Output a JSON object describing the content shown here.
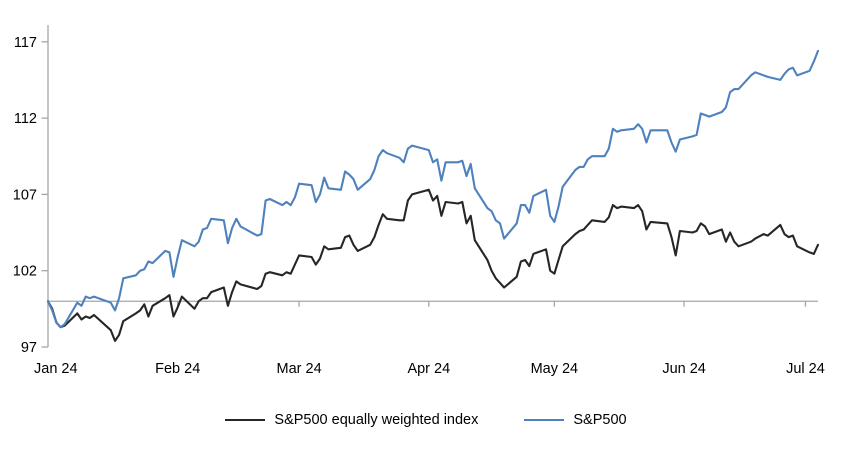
{
  "chart_data": {
    "type": "line",
    "title": "",
    "x_axis": {
      "labels": [
        "Jan 24",
        "Feb 24",
        "Mar 24",
        "Apr 24",
        "May 24",
        "Jun 24",
        "Jul 24"
      ],
      "label_positions_days": [
        0,
        31,
        60,
        91,
        121,
        152,
        181
      ],
      "range_days": [
        0,
        184
      ],
      "unit": "calendar days since Jan 1 2024"
    },
    "y_axis": {
      "tick_labels": [
        "97",
        "102",
        "107",
        "112",
        "117"
      ],
      "tick_values": [
        97,
        102,
        107,
        112,
        117
      ],
      "range": [
        97,
        118.1
      ],
      "baseline_value": 100
    },
    "grid": false,
    "legend_position": "bottom-center",
    "colors": {
      "sp500_line": "#4f81bd",
      "equal_weight_line": "#262626",
      "axis_gray": "#a6a6a6",
      "text": "#000000"
    },
    "series": [
      {
        "name": "S&P500 equally weighted index",
        "color": "#262626",
        "points": [
          [
            0,
            100
          ],
          [
            1,
            99.5
          ],
          [
            2,
            98.6
          ],
          [
            3,
            98.3
          ],
          [
            4,
            98.4
          ],
          [
            7,
            99.2
          ],
          [
            8,
            98.8
          ],
          [
            9,
            99.0
          ],
          [
            10,
            98.9
          ],
          [
            11,
            99.1
          ],
          [
            15,
            98.1
          ],
          [
            16,
            97.4
          ],
          [
            17,
            97.8
          ],
          [
            18,
            98.7
          ],
          [
            21,
            99.2
          ],
          [
            22,
            99.4
          ],
          [
            23,
            99.8
          ],
          [
            24,
            99.0
          ],
          [
            25,
            99.7
          ],
          [
            28,
            100.2
          ],
          [
            29,
            100.4
          ],
          [
            30,
            99.0
          ],
          [
            31,
            99.6
          ],
          [
            32,
            100.3
          ],
          [
            35,
            99.5
          ],
          [
            36,
            100.0
          ],
          [
            37,
            100.2
          ],
          [
            38,
            100.2
          ],
          [
            39,
            100.6
          ],
          [
            42,
            100.9
          ],
          [
            43,
            99.7
          ],
          [
            44,
            100.6
          ],
          [
            45,
            101.3
          ],
          [
            46,
            101.1
          ],
          [
            50,
            100.8
          ],
          [
            51,
            101.0
          ],
          [
            52,
            101.8
          ],
          [
            53,
            101.9
          ],
          [
            56,
            101.7
          ],
          [
            57,
            101.9
          ],
          [
            58,
            101.8
          ],
          [
            59,
            102.4
          ],
          [
            60,
            103.0
          ],
          [
            63,
            102.9
          ],
          [
            64,
            102.4
          ],
          [
            65,
            102.8
          ],
          [
            66,
            103.6
          ],
          [
            67,
            103.4
          ],
          [
            70,
            103.5
          ],
          [
            71,
            104.2
          ],
          [
            72,
            104.3
          ],
          [
            73,
            103.7
          ],
          [
            74,
            103.3
          ],
          [
            77,
            103.7
          ],
          [
            78,
            104.2
          ],
          [
            79,
            105.0
          ],
          [
            80,
            105.7
          ],
          [
            81,
            105.4
          ],
          [
            84,
            105.3
          ],
          [
            85,
            105.3
          ],
          [
            86,
            106.6
          ],
          [
            87,
            107.0
          ],
          [
            91,
            107.3
          ],
          [
            92,
            106.6
          ],
          [
            93,
            106.9
          ],
          [
            94,
            105.6
          ],
          [
            95,
            106.5
          ],
          [
            98,
            106.4
          ],
          [
            99,
            106.5
          ],
          [
            100,
            105.1
          ],
          [
            101,
            105.6
          ],
          [
            102,
            104.0
          ],
          [
            105,
            102.7
          ],
          [
            106,
            102.0
          ],
          [
            107,
            101.5
          ],
          [
            108,
            101.2
          ],
          [
            109,
            100.9
          ],
          [
            112,
            101.6
          ],
          [
            113,
            102.6
          ],
          [
            114,
            102.7
          ],
          [
            115,
            102.3
          ],
          [
            116,
            103.1
          ],
          [
            119,
            103.4
          ],
          [
            120,
            102.0
          ],
          [
            121,
            101.8
          ],
          [
            122,
            102.7
          ],
          [
            123,
            103.6
          ],
          [
            126,
            104.4
          ],
          [
            127,
            104.6
          ],
          [
            128,
            104.7
          ],
          [
            129,
            105.0
          ],
          [
            130,
            105.3
          ],
          [
            133,
            105.2
          ],
          [
            134,
            105.5
          ],
          [
            135,
            106.3
          ],
          [
            136,
            106.1
          ],
          [
            137,
            106.2
          ],
          [
            140,
            106.1
          ],
          [
            141,
            106.3
          ],
          [
            142,
            105.9
          ],
          [
            143,
            104.7
          ],
          [
            144,
            105.2
          ],
          [
            148,
            105.1
          ],
          [
            149,
            104.2
          ],
          [
            150,
            103.0
          ],
          [
            151,
            104.6
          ],
          [
            154,
            104.5
          ],
          [
            155,
            104.6
          ],
          [
            156,
            105.1
          ],
          [
            157,
            104.9
          ],
          [
            158,
            104.4
          ],
          [
            161,
            104.7
          ],
          [
            162,
            103.9
          ],
          [
            163,
            104.5
          ],
          [
            164,
            103.9
          ],
          [
            165,
            103.6
          ],
          [
            168,
            103.9
          ],
          [
            169,
            104.1
          ],
          [
            171,
            104.4
          ],
          [
            172,
            104.3
          ],
          [
            175,
            105.0
          ],
          [
            176,
            104.4
          ],
          [
            177,
            104.2
          ],
          [
            178,
            104.3
          ],
          [
            179,
            103.6
          ],
          [
            182,
            103.2
          ],
          [
            183,
            103.1
          ],
          [
            184,
            103.7
          ]
        ]
      },
      {
        "name": "S&P500",
        "color": "#4f81bd",
        "points": [
          [
            0,
            100
          ],
          [
            1,
            99.4
          ],
          [
            2,
            98.6
          ],
          [
            3,
            98.3
          ],
          [
            4,
            98.5
          ],
          [
            7,
            99.9
          ],
          [
            8,
            99.7
          ],
          [
            9,
            100.3
          ],
          [
            10,
            100.2
          ],
          [
            11,
            100.3
          ],
          [
            15,
            99.9
          ],
          [
            16,
            99.4
          ],
          [
            17,
            100.2
          ],
          [
            18,
            101.5
          ],
          [
            21,
            101.7
          ],
          [
            22,
            102.0
          ],
          [
            23,
            102.1
          ],
          [
            24,
            102.6
          ],
          [
            25,
            102.5
          ],
          [
            28,
            103.3
          ],
          [
            29,
            103.2
          ],
          [
            30,
            101.6
          ],
          [
            31,
            102.9
          ],
          [
            32,
            104.0
          ],
          [
            35,
            103.6
          ],
          [
            36,
            103.9
          ],
          [
            37,
            104.7
          ],
          [
            38,
            104.8
          ],
          [
            39,
            105.4
          ],
          [
            42,
            105.3
          ],
          [
            43,
            103.8
          ],
          [
            44,
            104.8
          ],
          [
            45,
            105.4
          ],
          [
            46,
            104.9
          ],
          [
            50,
            104.3
          ],
          [
            51,
            104.4
          ],
          [
            52,
            106.6
          ],
          [
            53,
            106.7
          ],
          [
            56,
            106.3
          ],
          [
            57,
            106.5
          ],
          [
            58,
            106.3
          ],
          [
            59,
            106.8
          ],
          [
            60,
            107.7
          ],
          [
            63,
            107.6
          ],
          [
            64,
            106.5
          ],
          [
            65,
            107.0
          ],
          [
            66,
            108.1
          ],
          [
            67,
            107.4
          ],
          [
            70,
            107.3
          ],
          [
            71,
            108.5
          ],
          [
            72,
            108.3
          ],
          [
            73,
            108.0
          ],
          [
            74,
            107.3
          ],
          [
            77,
            108.0
          ],
          [
            78,
            108.6
          ],
          [
            79,
            109.5
          ],
          [
            80,
            109.9
          ],
          [
            81,
            109.7
          ],
          [
            84,
            109.4
          ],
          [
            85,
            109.1
          ],
          [
            86,
            110.0
          ],
          [
            87,
            110.2
          ],
          [
            91,
            109.9
          ],
          [
            92,
            109.1
          ],
          [
            93,
            109.3
          ],
          [
            94,
            107.9
          ],
          [
            95,
            109.1
          ],
          [
            98,
            109.1
          ],
          [
            99,
            109.2
          ],
          [
            100,
            108.2
          ],
          [
            101,
            109.0
          ],
          [
            102,
            107.4
          ],
          [
            105,
            106.1
          ],
          [
            106,
            105.9
          ],
          [
            107,
            105.3
          ],
          [
            108,
            105.1
          ],
          [
            109,
            104.1
          ],
          [
            112,
            105.1
          ],
          [
            113,
            106.3
          ],
          [
            114,
            106.3
          ],
          [
            115,
            105.8
          ],
          [
            116,
            106.9
          ],
          [
            119,
            107.3
          ],
          [
            120,
            105.6
          ],
          [
            121,
            105.2
          ],
          [
            122,
            106.2
          ],
          [
            123,
            107.5
          ],
          [
            126,
            108.6
          ],
          [
            127,
            108.8
          ],
          [
            128,
            108.8
          ],
          [
            129,
            109.3
          ],
          [
            130,
            109.5
          ],
          [
            133,
            109.5
          ],
          [
            134,
            110.0
          ],
          [
            135,
            111.3
          ],
          [
            136,
            111.1
          ],
          [
            137,
            111.2
          ],
          [
            140,
            111.3
          ],
          [
            141,
            111.6
          ],
          [
            142,
            111.3
          ],
          [
            143,
            110.4
          ],
          [
            144,
            111.2
          ],
          [
            148,
            111.2
          ],
          [
            149,
            110.4
          ],
          [
            150,
            109.8
          ],
          [
            151,
            110.6
          ],
          [
            154,
            110.8
          ],
          [
            155,
            110.9
          ],
          [
            156,
            112.3
          ],
          [
            157,
            112.2
          ],
          [
            158,
            112.1
          ],
          [
            161,
            112.4
          ],
          [
            162,
            112.7
          ],
          [
            163,
            113.7
          ],
          [
            164,
            113.9
          ],
          [
            165,
            113.9
          ],
          [
            168,
            114.8
          ],
          [
            169,
            115.0
          ],
          [
            171,
            114.8
          ],
          [
            172,
            114.7
          ],
          [
            175,
            114.5
          ],
          [
            176,
            114.9
          ],
          [
            177,
            115.2
          ],
          [
            178,
            115.3
          ],
          [
            179,
            114.8
          ],
          [
            182,
            115.1
          ],
          [
            183,
            115.7
          ],
          [
            184,
            116.4
          ]
        ]
      }
    ]
  }
}
